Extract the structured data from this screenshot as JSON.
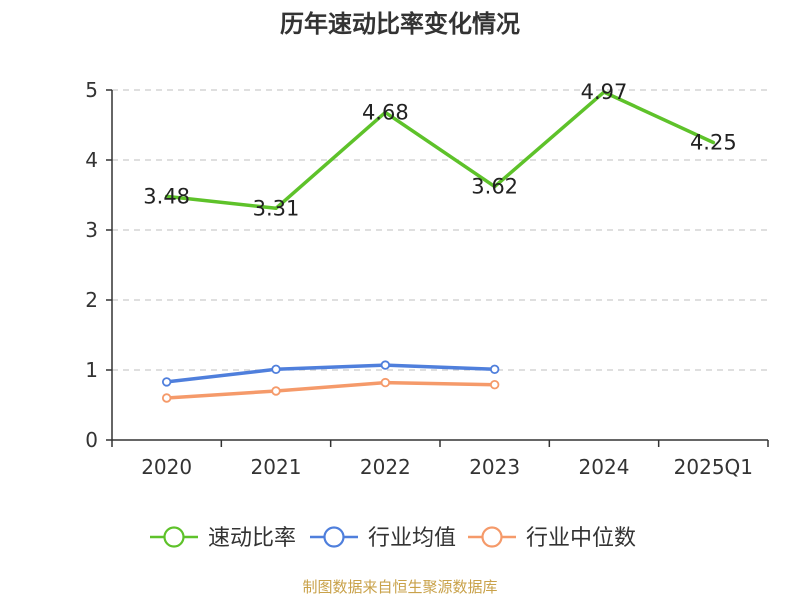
{
  "chart_data": {
    "type": "line",
    "title": "历年速动比率变化情况",
    "categories": [
      "2020",
      "2021",
      "2022",
      "2023",
      "2024",
      "2025Q1"
    ],
    "series": [
      {
        "name": "速动比率",
        "color": "#5ec22a",
        "values": [
          3.48,
          3.31,
          4.68,
          3.62,
          4.97,
          4.25
        ],
        "show_labels": true,
        "labels": [
          "3.48",
          "3.31",
          "4.68",
          "3.62",
          "4.97",
          "4.25"
        ],
        "markers": false
      },
      {
        "name": "行业均值",
        "color": "#4f7fdc",
        "values": [
          0.83,
          1.01,
          1.07,
          1.01,
          null,
          null
        ],
        "show_labels": false,
        "markers": true
      },
      {
        "name": "行业中位数",
        "color": "#f59a6a",
        "values": [
          0.6,
          0.7,
          0.82,
          0.79,
          null,
          null
        ],
        "show_labels": false,
        "markers": true
      }
    ],
    "ylim": [
      0,
      5
    ],
    "yticks": [
      0,
      1,
      2,
      3,
      4,
      5
    ],
    "xlabel": "",
    "ylabel": "",
    "grid": true,
    "legend_position": "bottom",
    "source": "制图数据来自恒生聚源数据库"
  }
}
